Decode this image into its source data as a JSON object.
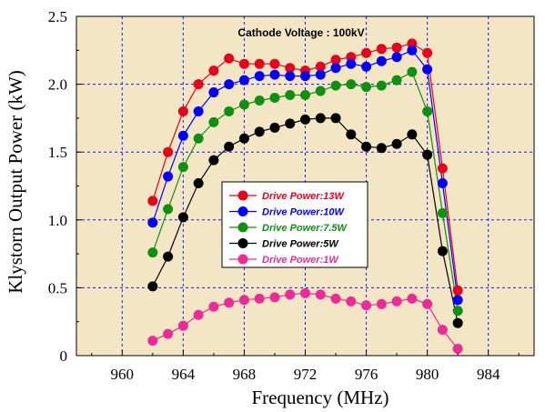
{
  "chart_data": {
    "type": "line",
    "title": "",
    "annotation": "Cathode Voltage : 100kV",
    "xlabel": "Frequency (MHz)",
    "ylabel": "Klystorn Output Power (kW)",
    "xlim": [
      957,
      987
    ],
    "ylim": [
      0,
      2.5
    ],
    "xticks": [
      "960",
      "964",
      "968",
      "972",
      "976",
      "980",
      "984"
    ],
    "yticks": [
      "0",
      "0.5",
      "1.0",
      "1.5",
      "2.0",
      "2.5"
    ],
    "xtick_values": [
      960,
      964,
      968,
      972,
      976,
      980,
      984
    ],
    "ytick_values": [
      0,
      0.5,
      1.0,
      1.5,
      2.0,
      2.5
    ],
    "grid": true,
    "legend_position": "center-left",
    "background_color": "#f2e6c4",
    "x": [
      962,
      963,
      964,
      965,
      966,
      967,
      968,
      969,
      970,
      971,
      972,
      973,
      974,
      975,
      976,
      977,
      978,
      979,
      980,
      981,
      982
    ],
    "series": [
      {
        "name": "Drive Power:13W",
        "color": "#e8001c",
        "values": [
          1.14,
          1.5,
          1.8,
          2.0,
          2.1,
          2.19,
          2.15,
          2.15,
          2.15,
          2.12,
          2.1,
          2.13,
          2.18,
          2.2,
          2.23,
          2.26,
          2.27,
          2.3,
          2.23,
          1.38,
          0.48
        ]
      },
      {
        "name": "Drive Power:10W",
        "color": "#0000ff",
        "values": [
          0.98,
          1.32,
          1.62,
          1.8,
          1.94,
          2.0,
          2.03,
          2.06,
          2.07,
          2.06,
          2.06,
          2.07,
          2.12,
          2.15,
          2.13,
          2.17,
          2.2,
          2.25,
          2.11,
          1.27,
          0.41
        ]
      },
      {
        "name": "Drive Power:7.5W",
        "color": "#109010",
        "values": [
          0.76,
          1.08,
          1.39,
          1.6,
          1.72,
          1.8,
          1.85,
          1.88,
          1.9,
          1.92,
          1.92,
          1.95,
          1.99,
          2.0,
          1.98,
          1.99,
          2.03,
          2.09,
          1.8,
          1.05,
          0.33
        ]
      },
      {
        "name": "Drive Power:5W",
        "color": "#000000",
        "values": [
          0.51,
          0.73,
          1.02,
          1.27,
          1.44,
          1.54,
          1.6,
          1.65,
          1.68,
          1.71,
          1.74,
          1.75,
          1.75,
          1.63,
          1.54,
          1.53,
          1.56,
          1.63,
          1.48,
          0.77,
          0.24
        ]
      },
      {
        "name": "Drive Power:1W",
        "color": "#ee2a9a",
        "values": [
          0.11,
          0.16,
          0.22,
          0.3,
          0.36,
          0.39,
          0.41,
          0.42,
          0.43,
          0.45,
          0.46,
          0.45,
          0.42,
          0.4,
          0.37,
          0.38,
          0.4,
          0.42,
          0.38,
          0.19,
          0.05
        ]
      }
    ]
  }
}
